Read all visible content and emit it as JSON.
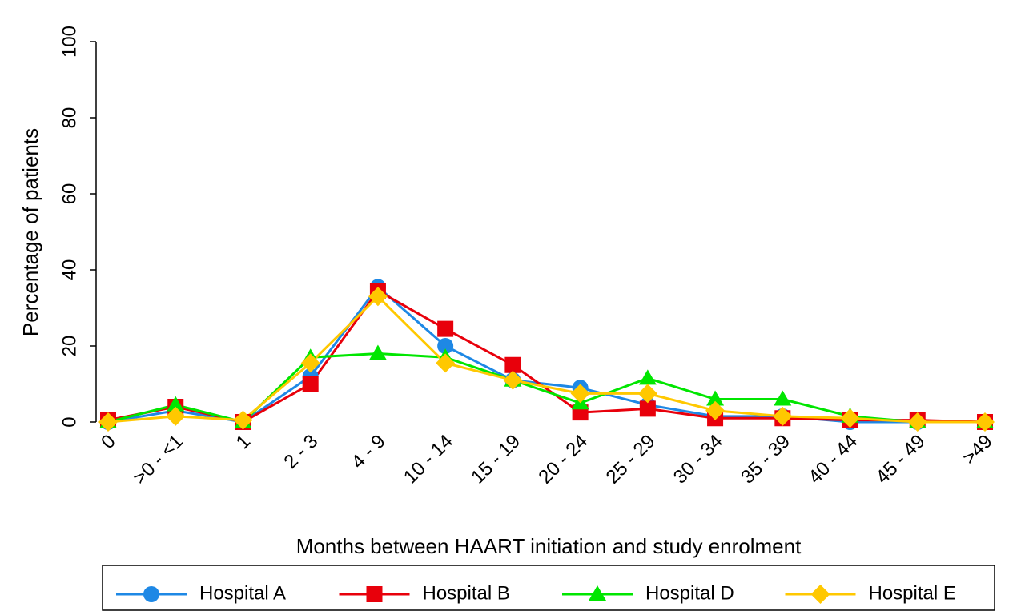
{
  "chart_data": {
    "type": "line",
    "xlabel": "Months between HAART initiation and study enrolment",
    "ylabel": "Percentage of patients",
    "categories": [
      "0",
      ">0 - <1",
      "1",
      "2 - 3",
      "4 - 9",
      "10 - 14",
      "15 - 19",
      "20 - 24",
      "25 - 29",
      "30 - 34",
      "35 - 39",
      "40 - 44",
      "45 - 49",
      ">49"
    ],
    "series": [
      {
        "name": "Hospital A",
        "color": "#1e88e5",
        "marker": "circle",
        "values": [
          0,
          3,
          0,
          12,
          35.5,
          20,
          11,
          9,
          4.5,
          1.5,
          1.5,
          0,
          0,
          0
        ]
      },
      {
        "name": "Hospital B",
        "color": "#e8000b",
        "marker": "square",
        "values": [
          0.5,
          4,
          0,
          10,
          34.5,
          24.5,
          15,
          2.5,
          3.5,
          1,
          1,
          0.5,
          0.5,
          0
        ]
      },
      {
        "name": "Hospital D",
        "color": "#00e600",
        "marker": "triangle",
        "values": [
          0,
          4.5,
          0,
          17,
          18,
          17,
          11,
          5,
          11.5,
          6,
          6,
          1.5,
          0,
          0
        ]
      },
      {
        "name": "Hospital E",
        "color": "#ffc800",
        "marker": "diamond",
        "values": [
          0,
          1.5,
          0.5,
          15.5,
          33,
          15.5,
          11,
          7.5,
          7.5,
          3,
          1.5,
          1,
          0,
          0
        ]
      }
    ],
    "ylim": [
      0,
      100
    ],
    "yticks": [
      0,
      20,
      40,
      60,
      80,
      100
    ],
    "legend": "bottom"
  }
}
